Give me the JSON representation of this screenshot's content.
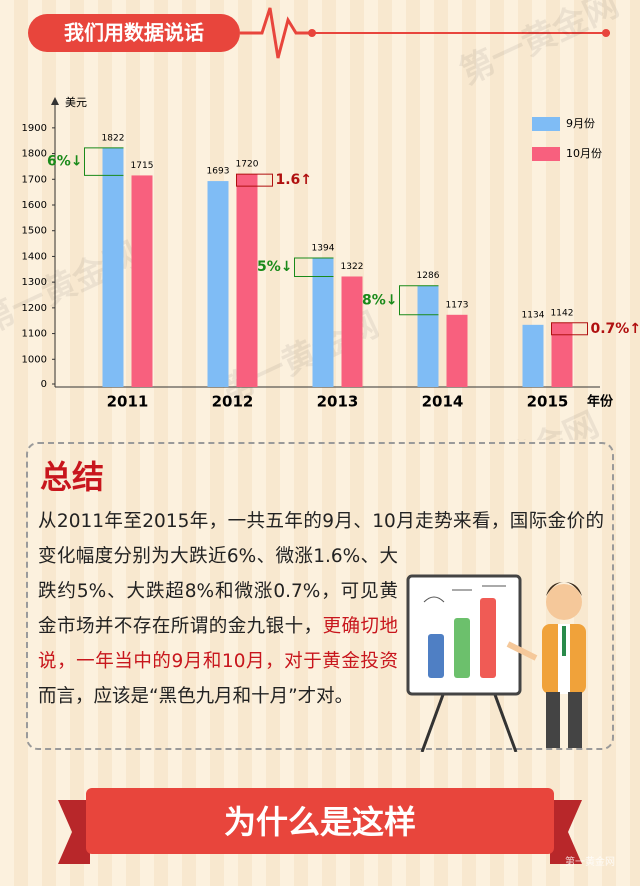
{
  "header": {
    "title": "我们用数据说话"
  },
  "watermark": "第一黄金网",
  "chart_data": {
    "type": "bar",
    "categories": [
      "2011",
      "2012",
      "2013",
      "2014",
      "2015"
    ],
    "series": [
      {
        "name": "9月份",
        "color": "#7fbcf5",
        "values": [
          1822,
          1693,
          1394,
          1286,
          1134
        ]
      },
      {
        "name": "10月份",
        "color": "#f8607e",
        "values": [
          1715,
          1720,
          1322,
          1173,
          1142
        ]
      }
    ],
    "y_label": "美元",
    "x_label": "年份",
    "ylim": [
      0,
      1950
    ],
    "y_break": [
      0,
      900
    ],
    "yticks": [
      0,
      1000,
      1100,
      1200,
      1300,
      1400,
      1500,
      1600,
      1700,
      1800,
      1900
    ],
    "legend": "top-right",
    "annotations": [
      {
        "text": "6%↓",
        "color": "#1a8a1a"
      },
      {
        "text": "1.6↑",
        "color": "#b01010"
      },
      {
        "text": "5%↓",
        "color": "#1a8a1a"
      },
      {
        "text": "8%↓",
        "color": "#1a8a1a"
      },
      {
        "text": "0.7%↑",
        "color": "#b01010"
      }
    ]
  },
  "summary": {
    "title": "总结",
    "text_plain": "从2011年至2015年，一共五年的9月、10月走势来看，国际金价的变化幅度分别为大跌近6%、微涨1.6%、大跌约5%、大跌超8%和微涨0.7%，可见黄金市场并不存在所谓的金九银十，",
    "text_red": "更确切地说，一年当中的9月和10月，对于黄金投资",
    "text_end": "而言，应该是“黑色九月和十月”才对。"
  },
  "banner": {
    "title": "为什么是这样"
  }
}
